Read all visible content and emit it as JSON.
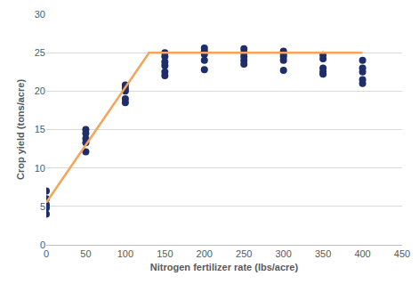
{
  "chart_data": {
    "type": "scatter",
    "x_label": "Nitrogen fertilizer rate (lbs/acre)",
    "y_label": "Crop yield (tons/acre)",
    "xlim": [
      0,
      450
    ],
    "xticks": [
      0,
      50,
      100,
      150,
      200,
      250,
      300,
      350,
      400,
      450
    ],
    "ylim": [
      0,
      30
    ],
    "yticks": [
      0,
      5,
      10,
      15,
      20,
      25,
      30
    ],
    "grid": "y",
    "series": [
      {
        "type": "scatter",
        "color": "#1f2d6b",
        "marker": "circle",
        "x": [
          0,
          0,
          0,
          0,
          0,
          50,
          50,
          50,
          50,
          50,
          100,
          100,
          100,
          100,
          100,
          150,
          150,
          150,
          150,
          150,
          150,
          200,
          200,
          200,
          200,
          200,
          250,
          250,
          250,
          250,
          250,
          300,
          300,
          300,
          300,
          300,
          350,
          350,
          350,
          350,
          350,
          400,
          400,
          400,
          400,
          400
        ],
        "values": [
          7,
          6,
          5.2,
          4.8,
          4,
          15,
          14.5,
          13.8,
          13.3,
          12.1,
          20.8,
          20.4,
          20,
          19,
          18.5,
          25,
          24.5,
          23.8,
          23.3,
          22.5,
          22,
          25.6,
          25.2,
          24.8,
          24,
          22.8,
          25.5,
          25,
          24.5,
          24,
          23.5,
          25.2,
          24.8,
          24.5,
          24,
          22.7,
          24.7,
          24.2,
          23,
          22.5,
          22.2,
          24,
          23,
          22.5,
          21.5,
          21
        ]
      },
      {
        "type": "line",
        "color": "#f4a55a",
        "line_style": "solid",
        "x": [
          0,
          130,
          400
        ],
        "values": [
          5.5,
          25,
          25
        ]
      }
    ]
  }
}
